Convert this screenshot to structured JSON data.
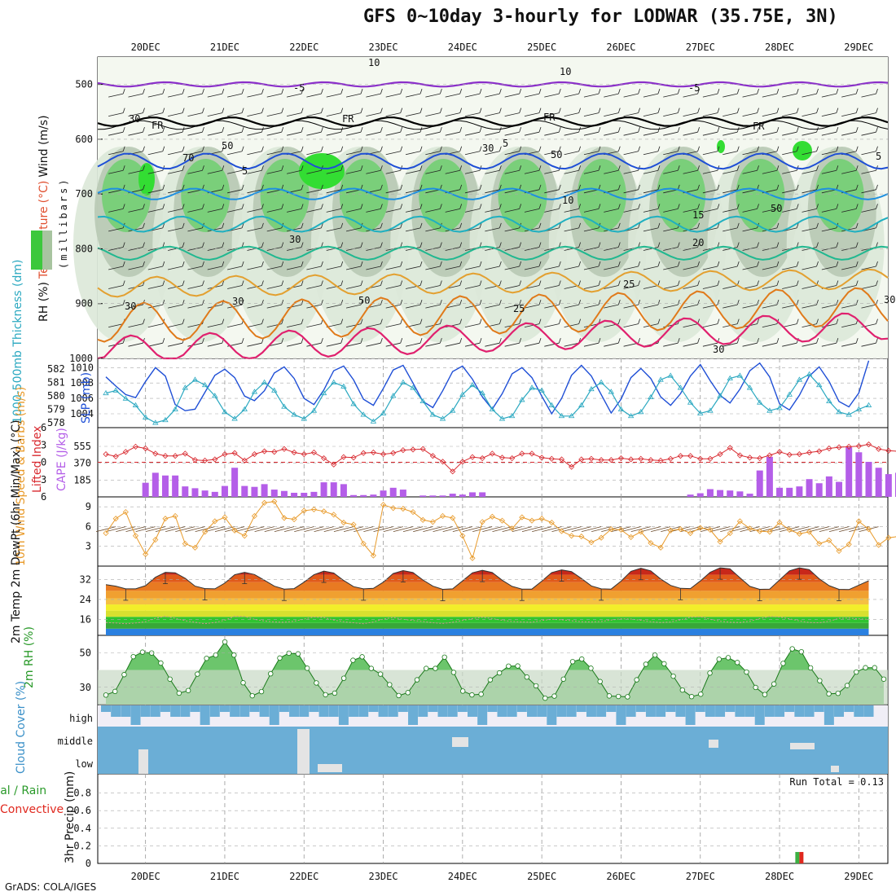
{
  "title": "GFS 0~10day 3-hourly for LODWAR (35.75E, 3N)",
  "credit": "GrADS: COLA/IGES",
  "date_labels": [
    "20DEC",
    "21DEC",
    "22DEC",
    "23DEC",
    "24DEC",
    "25DEC",
    "26DEC",
    "27DEC",
    "28DEC",
    "29DEC"
  ],
  "colors": {
    "rh_green": "#3cc83c",
    "cloud_blue": "#6baed6",
    "precip_green": "#3cb043",
    "precip_red": "#e0281e",
    "cape_bar": "#b45ee8",
    "thick_line": "#2aa8c0",
    "slp_line": "#1f4fd6",
    "wind_line": "#e89a2a",
    "li_line": "#d8282e"
  },
  "chart_data": [
    {
      "type": "contour",
      "panel": "upper-air",
      "ylabel_parts": [
        "RH (%)",
        "Temperature",
        "(°C)",
        "Wind (m/s)"
      ],
      "axis_label": "(millibars)",
      "y_ticks": [
        500,
        600,
        700,
        800,
        900,
        1000
      ],
      "ylim": [
        1000,
        450
      ],
      "isotherm_labels": [
        "-5",
        "-5",
        "FR",
        "FR",
        "FR",
        "FR",
        "5",
        "5",
        "5",
        "10",
        "15",
        "20",
        "25",
        "30",
        "25",
        "30",
        "30"
      ],
      "rh_labels": [
        "10",
        "10",
        "30",
        "50",
        "70",
        "30",
        "50",
        "50",
        "50",
        "30",
        "30"
      ]
    },
    {
      "type": "line",
      "panel": "thickness-slp",
      "ylabel_left": "1000-500mb Thickness (dm)",
      "ylabel_right": "SLP (mb)",
      "thickness_ticks": [
        578,
        579,
        580,
        581,
        582
      ],
      "slp_ticks": [
        1004,
        1006,
        1008,
        1010
      ],
      "series": [
        {
          "name": "SLP",
          "values": [
            1008.8,
            1007.6,
            1006.5,
            1006.1,
            1008.2,
            1010.0,
            1008.9,
            1005.2,
            1004.4,
            1004.6,
            1006.8,
            1009.0,
            1009.8,
            1008.7,
            1006.3,
            1005.7,
            1007.0,
            1009.3,
            1010.1,
            1008.6,
            1006.0,
            1005.2,
            1007.1,
            1009.6,
            1010.2,
            1008.4,
            1005.9,
            1005.1,
            1007.3,
            1009.7,
            1010.3,
            1008.0,
            1005.6,
            1004.8,
            1007.0,
            1009.5,
            1010.2,
            1008.5,
            1006.2,
            1004.6,
            1006.6,
            1009.2,
            1010.0,
            1008.7,
            1006.3,
            1004.0,
            1006.0,
            1009.0,
            1010.3,
            1008.9,
            1006.5,
            1004.1,
            1005.9,
            1008.7,
            1009.9,
            1008.6,
            1006.2,
            1005.1,
            1006.6,
            1008.9,
            1010.4,
            1008.3,
            1006.4,
            1005.4,
            1007.2,
            1009.6,
            1010.6,
            1008.8,
            1005.3,
            1004.5,
            1006.4,
            1008.9,
            1010.1,
            1008.2,
            1005.6,
            1004.9,
            1006.7,
            1010.9
          ]
        },
        {
          "name": "Thickness",
          "values": [
            580.2,
            580.4,
            579.8,
            579.3,
            578.4,
            578.0,
            578.2,
            579.0,
            580.6,
            581.2,
            580.8,
            580.0,
            578.8,
            578.3,
            579.0,
            580.3,
            581.0,
            580.4,
            579.2,
            578.6,
            578.3,
            578.9,
            580.2,
            581.0,
            580.7,
            579.4,
            578.6,
            578.1,
            578.7,
            580.0,
            581.0,
            580.6,
            579.6,
            578.6,
            578.3,
            578.9,
            580.1,
            580.8,
            580.2,
            579.0,
            578.3,
            578.5,
            579.7,
            580.6,
            580.4,
            579.3,
            578.5,
            578.5,
            579.3,
            580.5,
            581.0,
            580.3,
            579.0,
            578.5,
            578.8,
            579.9,
            581.2,
            581.5,
            580.6,
            579.5,
            578.7,
            578.9,
            580.0,
            581.3,
            581.5,
            580.6,
            579.5,
            578.9,
            579.1,
            580.1,
            581.2,
            581.6,
            580.8,
            579.6,
            578.8,
            578.6,
            579.0,
            579.3
          ]
        }
      ]
    },
    {
      "type": "bar",
      "panel": "cape-li",
      "ylabel_left": "Lifted Index",
      "ylabel_right": "CAPE (J/kg)",
      "li_ticks": [
        "-6",
        "-3",
        "0",
        "3",
        "6"
      ],
      "cape_ticks": [
        185,
        370,
        555
      ],
      "series": [
        {
          "name": "CAPE",
          "values": [
            0,
            0,
            0,
            0,
            155,
            265,
            235,
            235,
            115,
            95,
            70,
            55,
            120,
            320,
            120,
            110,
            140,
            80,
            65,
            45,
            45,
            55,
            160,
            160,
            140,
            20,
            20,
            25,
            70,
            100,
            80,
            0,
            15,
            15,
            15,
            35,
            25,
            50,
            50,
            0,
            0,
            0,
            0,
            0,
            0,
            0,
            0,
            0,
            0,
            0,
            0,
            0,
            0,
            0,
            0,
            0,
            0,
            0,
            0,
            25,
            40,
            85,
            75,
            70,
            60,
            35,
            290,
            440,
            100,
            100,
            115,
            195,
            150,
            225,
            165,
            545,
            490,
            385,
            320,
            250,
            265,
            160,
            80,
            40
          ]
        },
        {
          "name": "Lifted Index",
          "values": [
            -1.4,
            -1.0,
            -1.8,
            -2.7,
            -2.4,
            -1.5,
            -1.1,
            -1.1,
            -1.5,
            -0.4,
            -0.3,
            -0.5,
            -1.4,
            -1.6,
            -0.3,
            -1.4,
            -1.9,
            -1.8,
            -2.3,
            -1.7,
            -1.4,
            -1.7,
            -0.7,
            0.4,
            -0.9,
            -0.8,
            -1.6,
            -1.7,
            -1.4,
            -1.6,
            -2.1,
            -2.2,
            -2.3,
            -1.1,
            -0.1,
            1.6,
            -0.1,
            -0.9,
            -0.7,
            -1.5,
            -0.8,
            -0.7,
            -1.5,
            -1.5,
            -0.8,
            -0.6,
            -0.5,
            0.8,
            -0.5,
            -0.6,
            -0.4,
            -0.4,
            -0.7,
            -0.5,
            -0.6,
            -0.4,
            -0.3,
            -0.6,
            -1.1,
            -1.1,
            -0.6,
            -0.6,
            -1.4,
            -2.5,
            -1.2,
            -0.8,
            -0.7,
            -1.2,
            -1.8,
            -1.3,
            -1.4,
            -1.7,
            -1.9,
            -2.4,
            -2.6,
            -2.7,
            -2.8,
            -3.1,
            -2.3,
            -2.0,
            -1.9,
            -1.5,
            -0.9,
            -0.5,
            -0.3,
            -0.3
          ]
        }
      ]
    },
    {
      "type": "line",
      "panel": "10m-wind",
      "ylabel": "10m Wind Speed & Barbs (m/s)",
      "y_ticks": [
        3,
        6,
        9
      ],
      "series": [
        {
          "name": "Wind speed",
          "values": [
            5.0,
            7.2,
            8.2,
            4.6,
            1.8,
            4.0,
            7.2,
            7.6,
            3.4,
            2.8,
            5.2,
            6.8,
            7.4,
            5.4,
            4.6,
            7.6,
            9.6,
            9.8,
            7.3,
            7.1,
            8.4,
            8.6,
            8.3,
            7.8,
            6.6,
            6.3,
            3.4,
            1.6,
            9.3,
            8.8,
            8.7,
            8.2,
            7.0,
            6.7,
            7.6,
            7.3,
            4.6,
            1.2,
            6.7,
            7.5,
            6.9,
            5.7,
            7.4,
            6.9,
            7.2,
            6.6,
            5.3,
            4.6,
            4.5,
            3.6,
            4.3,
            5.6,
            5.5,
            4.4,
            5.2,
            3.5,
            2.8,
            5.4,
            5.6,
            5.0,
            5.8,
            5.5,
            3.7,
            5.0,
            6.8,
            5.7,
            5.3,
            5.2,
            6.6,
            5.5,
            4.9,
            5.2,
            3.4,
            3.9,
            2.3,
            3.3,
            6.8,
            5.6,
            3.2,
            4.3,
            4.5,
            5.2,
            6.3,
            7.2
          ]
        }
      ]
    },
    {
      "type": "area",
      "panel": "2m-temp",
      "ylabel": "2m Temp 2m DewPt (6hr Min/Max) (°C)",
      "y_ticks": [
        16,
        24,
        32
      ],
      "series": [
        {
          "name": "2m Temp",
          "values": [
            30.0,
            29.4,
            28.3,
            28.3,
            29.6,
            33.0,
            35.0,
            34.8,
            32.6,
            29.4,
            28.4,
            28.3,
            30.6,
            34.0,
            35.0,
            34.1,
            31.8,
            29.4,
            28.2,
            28.4,
            31.0,
            34.0,
            35.5,
            34.7,
            31.7,
            29.2,
            28.3,
            28.5,
            31.0,
            34.5,
            35.7,
            34.9,
            31.9,
            29.4,
            28.1,
            28.3,
            31.5,
            34.8,
            35.8,
            34.9,
            31.8,
            29.3,
            28.2,
            28.2,
            31.4,
            34.9,
            36.0,
            35.3,
            32.5,
            29.5,
            28.3,
            28.2,
            31.4,
            35.4,
            36.6,
            35.6,
            32.3,
            29.7,
            28.5,
            28.4,
            31.5,
            35.0,
            36.8,
            36.4,
            32.8,
            29.3,
            28.1,
            28.2,
            31.9,
            35.6,
            36.8,
            36.1,
            32.4,
            29.6,
            28.1,
            28.0,
            29.8,
            31.6
          ]
        },
        {
          "name": "2m DewPt",
          "values": [
            14.7,
            14.5,
            14.2,
            14.5,
            15.0,
            16.4,
            17.2,
            16.4,
            15.4,
            14.8,
            14.2,
            14.7,
            15.6,
            17.2,
            17.1,
            16.0,
            15.3,
            14.9,
            14.8,
            15.2,
            16.1,
            16.9,
            16.7,
            15.7,
            15.0,
            14.6,
            14.2,
            14.9,
            16.1,
            16.7,
            16.0,
            15.5,
            15.1,
            14.6,
            14.3,
            14.8,
            15.5,
            16.3,
            16.8,
            16.3,
            15.6,
            15.1,
            14.9,
            14.8,
            15.5,
            16.0,
            15.8,
            15.4,
            15.0,
            14.9,
            15.1,
            15.7,
            16.2,
            16.1,
            15.6,
            15.0,
            14.7,
            14.9,
            15.8,
            16.8,
            17.0,
            16.0,
            15.2,
            14.8,
            14.7,
            15.2,
            16.3,
            17.1,
            16.9,
            16.2,
            15.3,
            14.7,
            14.6,
            15.2,
            16.4,
            16.5,
            16.2,
            16.0
          ]
        }
      ]
    },
    {
      "type": "area",
      "panel": "2m-rh",
      "ylabel": "2m RH (%)",
      "y_ticks": [
        30,
        50
      ],
      "series": [
        {
          "name": "2m RH",
          "values": [
            25.5,
            27.6,
            37.3,
            47.7,
            50.3,
            49.8,
            44.0,
            34.7,
            26.6,
            28.1,
            37.6,
            46.7,
            48.6,
            56.2,
            48.6,
            32.6,
            25.1,
            27.5,
            37.8,
            46.9,
            49.7,
            49.3,
            41.0,
            32.5,
            25.7,
            26.6,
            35.2,
            45.6,
            47.6,
            40.9,
            37.6,
            31.5,
            25.2,
            26.9,
            34.3,
            40.9,
            40.9,
            47.4,
            38.6,
            27.8,
            25.6,
            26.0,
            34.3,
            38.3,
            42.2,
            42.3,
            35.9,
            30.8,
            23.7,
            24.9,
            34.7,
            44.8,
            46.3,
            41.0,
            33.3,
            25.0,
            24.7,
            24.5,
            34.3,
            43.3,
            48.6,
            43.6,
            36.4,
            28.4,
            24.6,
            26.0,
            38.2,
            46.2,
            47.1,
            44.3,
            38.8,
            29.9,
            25.8,
            31.9,
            43.8,
            52.2,
            50.5,
            41.2,
            33.8,
            26.2,
            26.5,
            31.0,
            38.8,
            41.3,
            41.3,
            34.7
          ]
        }
      ]
    },
    {
      "type": "bar",
      "panel": "cloud-cover",
      "ylabel": "Cloud Cover (%)",
      "levels": [
        "high",
        "middle",
        "low"
      ]
    },
    {
      "type": "bar",
      "panel": "precip",
      "ylabel_parts": [
        "Total / Rain",
        "Convective",
        "3hr Precip (mm)"
      ],
      "y_ticks": [
        "0",
        "0.2",
        "0.4",
        "0.6",
        "0.8"
      ],
      "ylim": [
        0,
        1.0
      ],
      "run_total_label": "Run Total = 0.13",
      "series": [
        {
          "name": "Total",
          "time_index": 70,
          "value": 0.13
        }
      ]
    }
  ]
}
